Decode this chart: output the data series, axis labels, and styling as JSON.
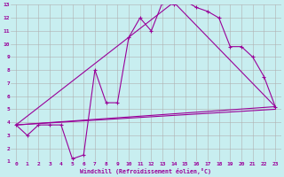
{
  "bg_color": "#c8eef0",
  "grid_color": "#b0b0b0",
  "line_color": "#990099",
  "xlabel": "Windchill (Refroidissement éolien,°C)",
  "xlim": [
    -0.5,
    23.5
  ],
  "ylim": [
    1,
    13
  ],
  "xticks": [
    0,
    1,
    2,
    3,
    4,
    5,
    6,
    7,
    8,
    9,
    10,
    11,
    12,
    13,
    14,
    15,
    16,
    17,
    18,
    19,
    20,
    21,
    22,
    23
  ],
  "yticks": [
    1,
    2,
    3,
    4,
    5,
    6,
    7,
    8,
    9,
    10,
    11,
    12,
    13
  ],
  "series1_x": [
    0,
    1,
    2,
    3,
    4,
    5,
    6,
    7,
    8,
    9,
    10,
    11,
    12,
    13,
    14,
    15,
    16,
    17,
    18,
    19,
    20,
    21,
    22,
    23
  ],
  "series1_y": [
    3.8,
    3.0,
    3.8,
    3.8,
    3.8,
    1.2,
    1.5,
    8.0,
    5.5,
    5.5,
    10.5,
    12.0,
    11.0,
    13.2,
    13.0,
    13.3,
    12.8,
    12.5,
    12.0,
    9.8,
    9.8,
    9.0,
    7.5,
    5.2
  ],
  "series2_x": [
    0,
    23
  ],
  "series2_y": [
    3.8,
    5.2
  ],
  "series3_x": [
    0,
    14,
    23
  ],
  "series3_y": [
    3.8,
    13.2,
    5.2
  ],
  "series4_x": [
    0,
    23
  ],
  "series4_y": [
    3.8,
    5.0
  ]
}
